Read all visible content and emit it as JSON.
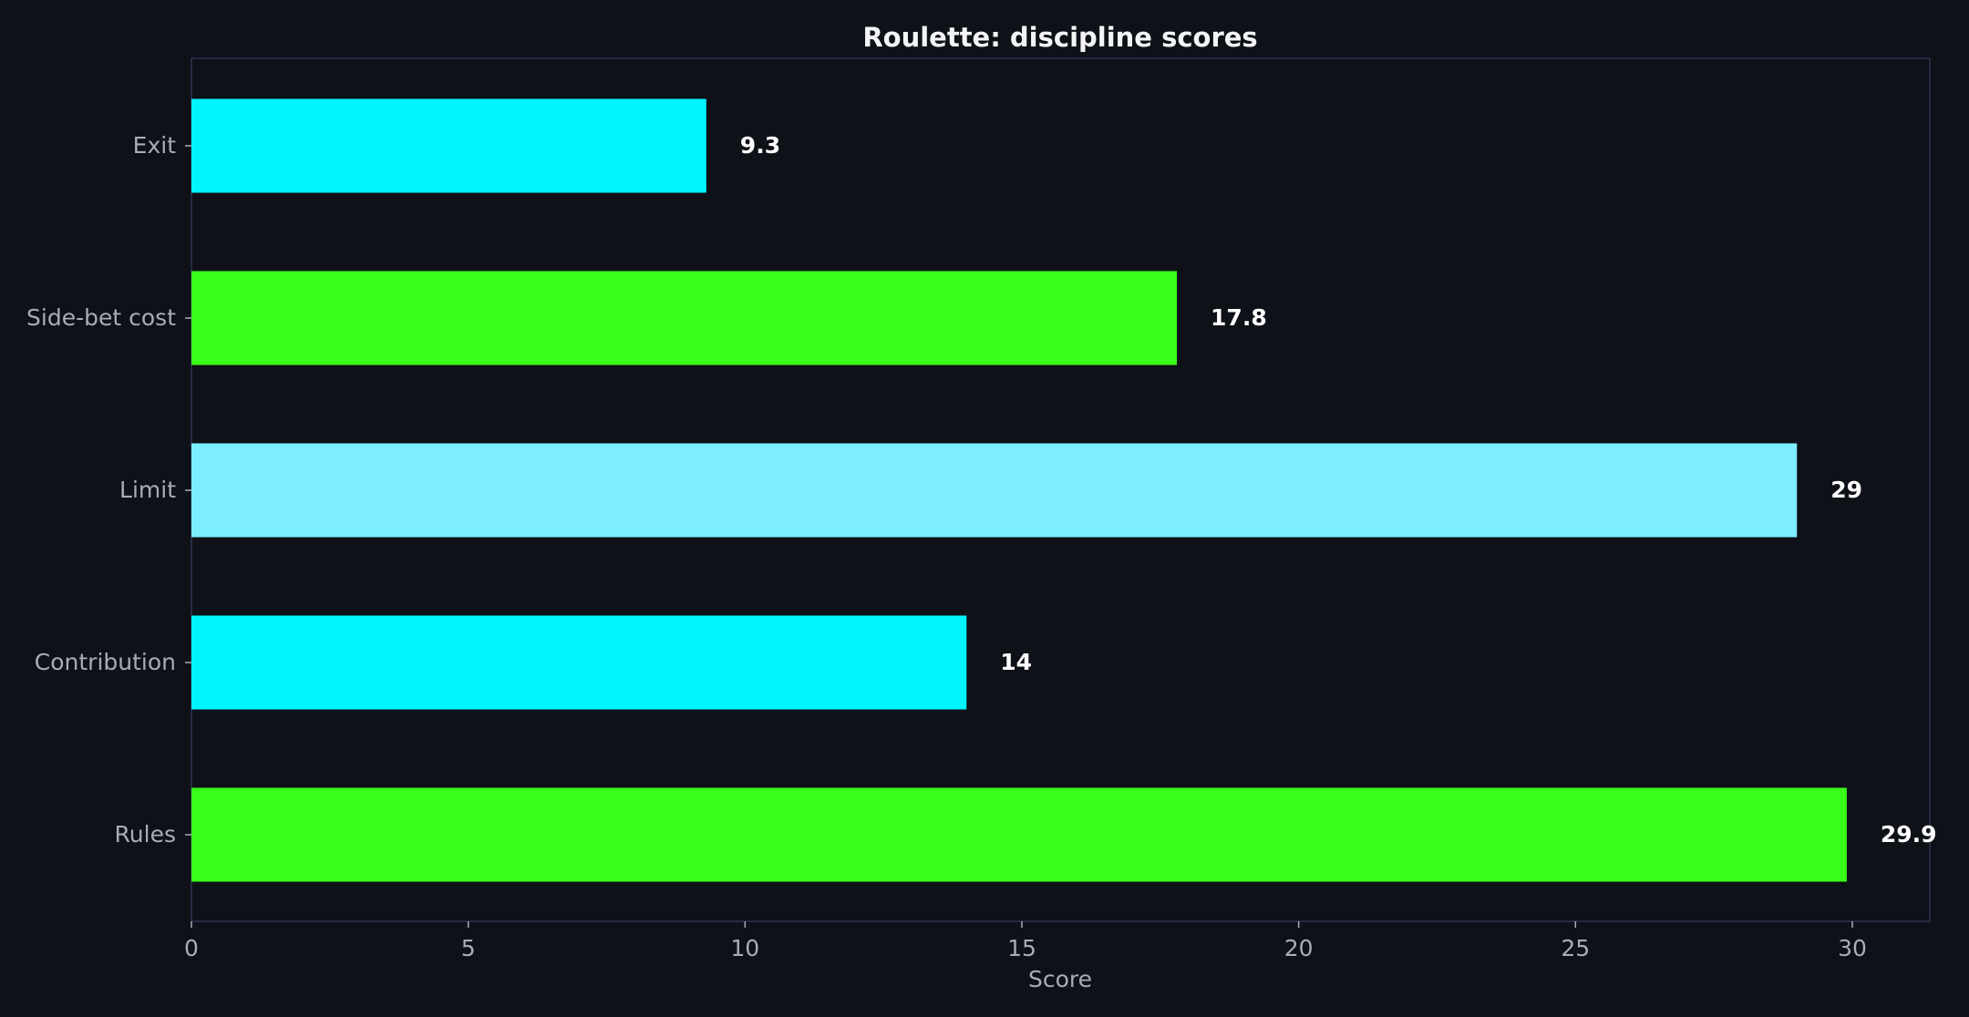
{
  "chart_data": {
    "type": "bar",
    "orientation": "horizontal",
    "title": "Roulette: discipline scores",
    "xlabel": "Score",
    "ylabel": "",
    "categories": [
      "Exit",
      "Side-bet cost",
      "Limit",
      "Contribution",
      "Rules"
    ],
    "values": [
      9.3,
      17.8,
      29,
      14,
      29.9
    ],
    "value_labels": [
      "9.3",
      "17.8",
      "29",
      "14",
      "29.9"
    ],
    "bar_colors": [
      "#00f5ff",
      "#39ff1a",
      "#7ceeff",
      "#00f5ff",
      "#39ff1a"
    ],
    "xlim": [
      0,
      31.4
    ],
    "xticks": [
      0,
      5,
      10,
      15,
      20,
      25,
      30
    ],
    "xtick_labels": [
      "0",
      "5",
      "10",
      "15",
      "20",
      "25",
      "30"
    ],
    "grid": false,
    "legend": "none"
  },
  "theme": {
    "background": "#0e1117",
    "frame": "#2d3350",
    "tick_color": "#a7adb7",
    "text_color": "#f3f4f6"
  }
}
